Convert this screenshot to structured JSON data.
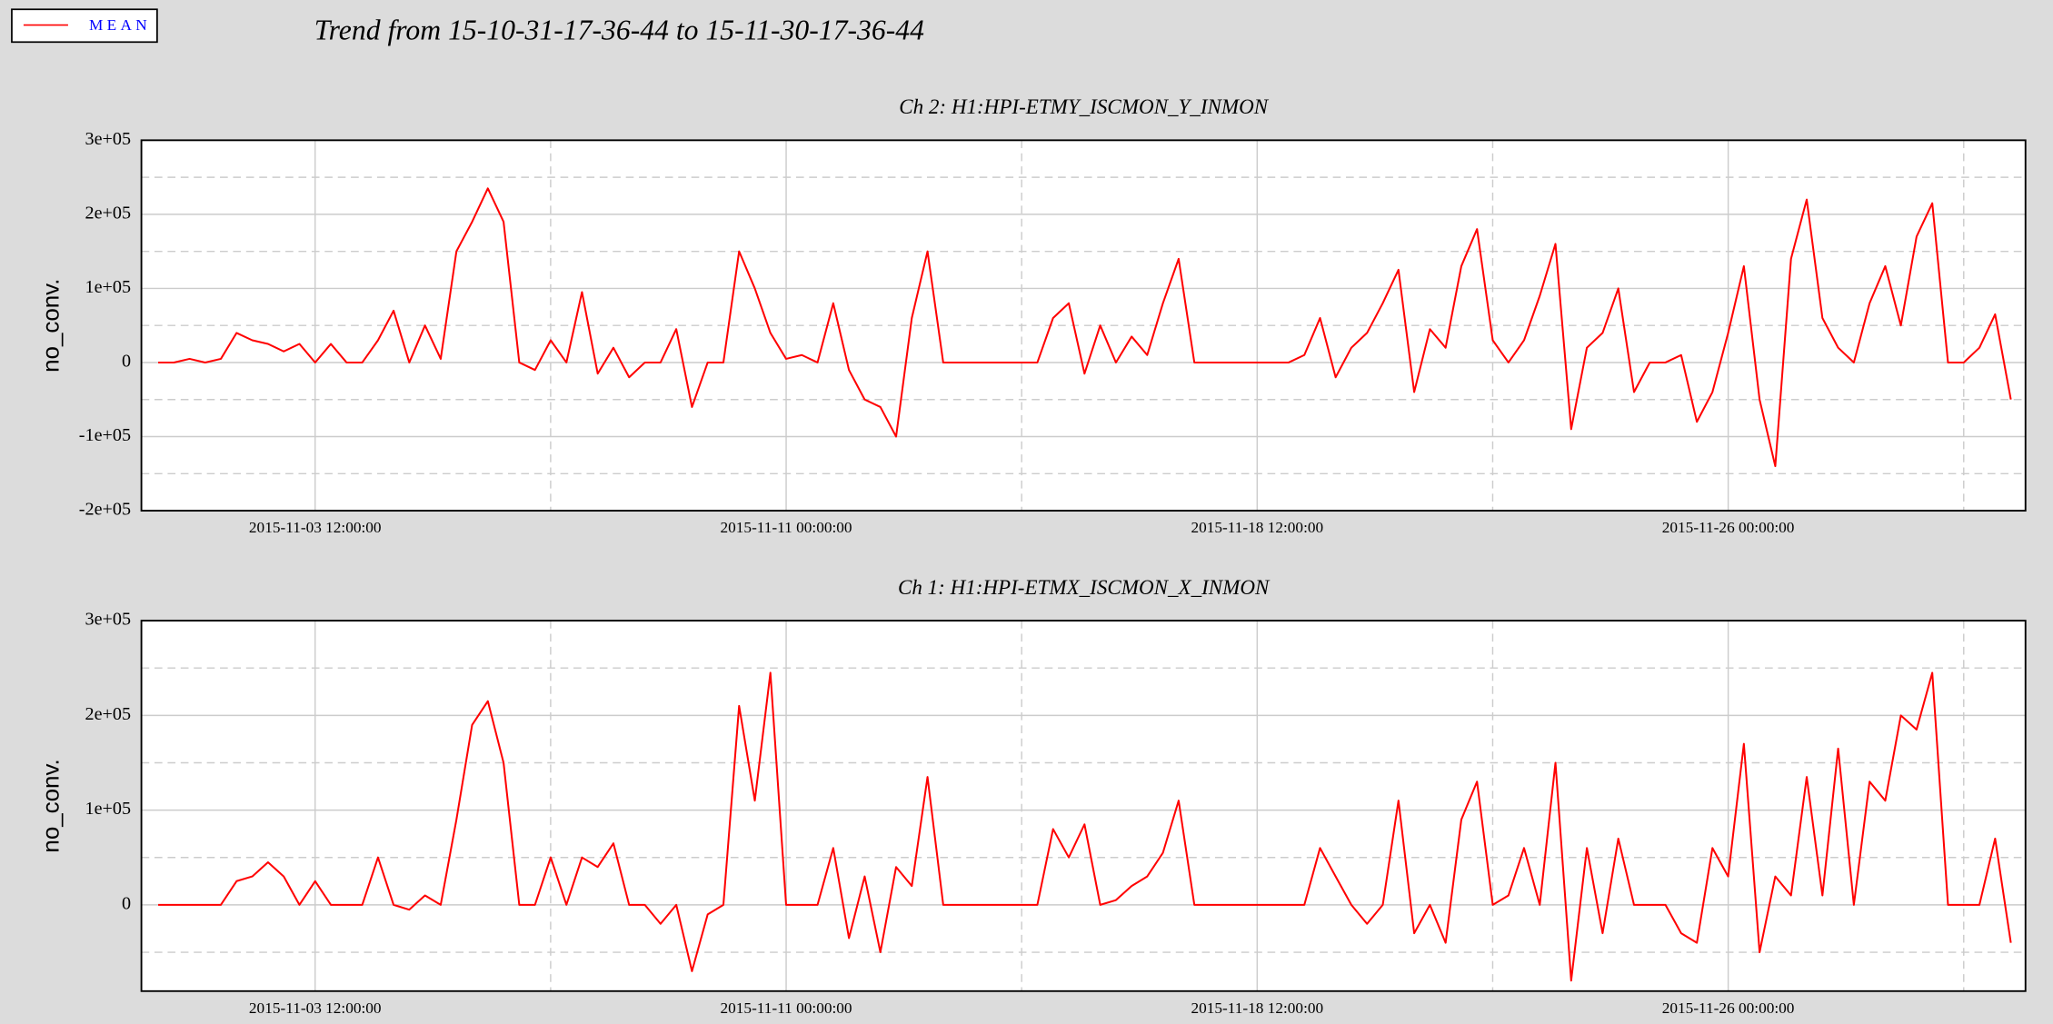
{
  "title": "Trend from 15-10-31-17-36-44 to 15-11-30-17-36-44",
  "chart_data": [
    {
      "type": "line",
      "title": "Ch 2: H1:HPI-ETMY_ISCMON_Y_INMON",
      "ylabel": "no_conv.",
      "xlim": [
        "2015-10-31 17:36:44",
        "2015-11-30 17:36:44"
      ],
      "xticks": [
        "2015-11-03 12:00:00",
        "2015-11-11 00:00:00",
        "2015-11-18 12:00:00",
        "2015-11-26 00:00:00"
      ],
      "xminorticks": [
        "2015-11-07 06:00:00",
        "2015-11-14 18:00:00",
        "2015-11-22 06:00:00",
        "2015-11-29 18:00:00"
      ],
      "ylim": [
        -200000,
        300000
      ],
      "yticks": [
        {
          "value": -200000,
          "label": "-2e+05"
        },
        {
          "value": -100000,
          "label": "-1e+05"
        },
        0,
        {
          "value": 100000,
          "label": "1e+05"
        },
        {
          "value": 200000,
          "label": "2e+05"
        },
        {
          "value": 300000,
          "label": "3e+05"
        }
      ],
      "yminorticks": [
        -150000,
        -50000,
        50000,
        150000,
        250000
      ],
      "grid": true,
      "x": [
        "2015-11-01 00:00:00",
        "2015-11-01 06:00:00",
        "2015-11-01 12:00:00",
        "2015-11-01 18:00:00",
        "2015-11-02 00:00:00",
        "2015-11-02 06:00:00",
        "2015-11-02 12:00:00",
        "2015-11-02 18:00:00",
        "2015-11-03 00:00:00",
        "2015-11-03 06:00:00",
        "2015-11-03 12:00:00",
        "2015-11-03 18:00:00",
        "2015-11-04 00:00:00",
        "2015-11-04 06:00:00",
        "2015-11-04 12:00:00",
        "2015-11-04 18:00:00",
        "2015-11-05 00:00:00",
        "2015-11-05 06:00:00",
        "2015-11-05 12:00:00",
        "2015-11-05 18:00:00",
        "2015-11-06 00:00:00",
        "2015-11-06 06:00:00",
        "2015-11-06 12:00:00",
        "2015-11-06 18:00:00",
        "2015-11-07 00:00:00",
        "2015-11-07 06:00:00",
        "2015-11-07 12:00:00",
        "2015-11-07 18:00:00",
        "2015-11-08 00:00:00",
        "2015-11-08 06:00:00",
        "2015-11-08 12:00:00",
        "2015-11-08 18:00:00",
        "2015-11-09 00:00:00",
        "2015-11-09 06:00:00",
        "2015-11-09 12:00:00",
        "2015-11-09 18:00:00",
        "2015-11-10 00:00:00",
        "2015-11-10 06:00:00",
        "2015-11-10 12:00:00",
        "2015-11-10 18:00:00",
        "2015-11-11 00:00:00",
        "2015-11-11 06:00:00",
        "2015-11-11 12:00:00",
        "2015-11-11 18:00:00",
        "2015-11-12 00:00:00",
        "2015-11-12 06:00:00",
        "2015-11-12 12:00:00",
        "2015-11-12 18:00:00",
        "2015-11-13 00:00:00",
        "2015-11-13 06:00:00",
        "2015-11-13 12:00:00",
        "2015-11-13 18:00:00",
        "2015-11-14 00:00:00",
        "2015-11-14 06:00:00",
        "2015-11-14 12:00:00",
        "2015-11-14 18:00:00",
        "2015-11-15 00:00:00",
        "2015-11-15 06:00:00",
        "2015-11-15 12:00:00",
        "2015-11-15 18:00:00",
        "2015-11-16 00:00:00",
        "2015-11-16 06:00:00",
        "2015-11-16 12:00:00",
        "2015-11-16 18:00:00",
        "2015-11-17 00:00:00",
        "2015-11-17 06:00:00",
        "2015-11-17 12:00:00",
        "2015-11-17 18:00:00",
        "2015-11-18 00:00:00",
        "2015-11-18 06:00:00",
        "2015-11-18 12:00:00",
        "2015-11-18 18:00:00",
        "2015-11-19 00:00:00",
        "2015-11-19 06:00:00",
        "2015-11-19 12:00:00",
        "2015-11-19 18:00:00",
        "2015-11-20 00:00:00",
        "2015-11-20 06:00:00",
        "2015-11-20 12:00:00",
        "2015-11-20 18:00:00",
        "2015-11-21 00:00:00",
        "2015-11-21 06:00:00",
        "2015-11-21 12:00:00",
        "2015-11-21 18:00:00",
        "2015-11-22 00:00:00",
        "2015-11-22 06:00:00",
        "2015-11-22 12:00:00",
        "2015-11-22 18:00:00",
        "2015-11-23 00:00:00",
        "2015-11-23 06:00:00",
        "2015-11-23 12:00:00",
        "2015-11-23 18:00:00",
        "2015-11-24 00:00:00",
        "2015-11-24 06:00:00",
        "2015-11-24 12:00:00",
        "2015-11-24 18:00:00",
        "2015-11-25 00:00:00",
        "2015-11-25 06:00:00",
        "2015-11-25 12:00:00",
        "2015-11-25 18:00:00",
        "2015-11-26 00:00:00",
        "2015-11-26 06:00:00",
        "2015-11-26 12:00:00",
        "2015-11-26 18:00:00",
        "2015-11-27 00:00:00",
        "2015-11-27 06:00:00",
        "2015-11-27 12:00:00",
        "2015-11-27 18:00:00",
        "2015-11-28 00:00:00",
        "2015-11-28 06:00:00",
        "2015-11-28 12:00:00",
        "2015-11-28 18:00:00",
        "2015-11-29 00:00:00",
        "2015-11-29 06:00:00",
        "2015-11-29 12:00:00",
        "2015-11-29 18:00:00",
        "2015-11-30 00:00:00",
        "2015-11-30 06:00:00",
        "2015-11-30 12:00:00"
      ],
      "series": [
        {
          "name": "MEAN",
          "color": "#ff0000",
          "values": [
            0,
            0,
            5000,
            0,
            5000,
            40000,
            30000,
            25000,
            15000,
            25000,
            0,
            25000,
            0,
            0,
            30000,
            70000,
            0,
            50000,
            5000,
            150000,
            190000,
            235000,
            190000,
            0,
            -10000,
            30000,
            0,
            95000,
            -15000,
            20000,
            -20000,
            0,
            0,
            45000,
            -60000,
            0,
            0,
            150000,
            100000,
            40000,
            5000,
            10000,
            0,
            80000,
            -10000,
            -50000,
            -60000,
            -100000,
            60000,
            150000,
            0,
            0,
            0,
            0,
            0,
            0,
            0,
            60000,
            80000,
            -15000,
            50000,
            0,
            35000,
            10000,
            80000,
            140000,
            0,
            0,
            0,
            0,
            0,
            0,
            0,
            10000,
            60000,
            -20000,
            20000,
            40000,
            80000,
            125000,
            -40000,
            45000,
            20000,
            130000,
            180000,
            30000,
            0,
            30000,
            90000,
            160000,
            -90000,
            20000,
            40000,
            100000,
            -40000,
            0,
            0,
            10000,
            -80000,
            -40000,
            40000,
            130000,
            -50000,
            -140000,
            140000,
            220000,
            60000,
            20000,
            0,
            80000,
            130000,
            50000,
            170000,
            215000,
            0,
            0,
            20000,
            65000,
            -50000
          ]
        }
      ]
    },
    {
      "type": "line",
      "title": "Ch 1: H1:HPI-ETMX_ISCMON_X_INMON",
      "ylabel": "no_conv.",
      "xlim": [
        "2015-10-31 17:36:44",
        "2015-11-30 17:36:44"
      ],
      "xticks": [
        "2015-11-03 12:00:00",
        "2015-11-11 00:00:00",
        "2015-11-18 12:00:00",
        "2015-11-26 00:00:00"
      ],
      "xminorticks": [
        "2015-11-07 06:00:00",
        "2015-11-14 18:00:00",
        "2015-11-22 06:00:00",
        "2015-11-29 18:00:00"
      ],
      "ylim": [
        -91000,
        300000
      ],
      "yticks": [
        0,
        {
          "value": 100000,
          "label": "1e+05"
        },
        {
          "value": 200000,
          "label": "2e+05"
        },
        {
          "value": 300000,
          "label": "3e+05"
        }
      ],
      "yminorticks": [
        -50000,
        50000,
        150000,
        250000
      ],
      "grid": true,
      "x": [
        "2015-11-01 00:00:00",
        "2015-11-01 06:00:00",
        "2015-11-01 12:00:00",
        "2015-11-01 18:00:00",
        "2015-11-02 00:00:00",
        "2015-11-02 06:00:00",
        "2015-11-02 12:00:00",
        "2015-11-02 18:00:00",
        "2015-11-03 00:00:00",
        "2015-11-03 06:00:00",
        "2015-11-03 12:00:00",
        "2015-11-03 18:00:00",
        "2015-11-04 00:00:00",
        "2015-11-04 06:00:00",
        "2015-11-04 12:00:00",
        "2015-11-04 18:00:00",
        "2015-11-05 00:00:00",
        "2015-11-05 06:00:00",
        "2015-11-05 12:00:00",
        "2015-11-05 18:00:00",
        "2015-11-06 00:00:00",
        "2015-11-06 06:00:00",
        "2015-11-06 12:00:00",
        "2015-11-06 18:00:00",
        "2015-11-07 00:00:00",
        "2015-11-07 06:00:00",
        "2015-11-07 12:00:00",
        "2015-11-07 18:00:00",
        "2015-11-08 00:00:00",
        "2015-11-08 06:00:00",
        "2015-11-08 12:00:00",
        "2015-11-08 18:00:00",
        "2015-11-09 00:00:00",
        "2015-11-09 06:00:00",
        "2015-11-09 12:00:00",
        "2015-11-09 18:00:00",
        "2015-11-10 00:00:00",
        "2015-11-10 06:00:00",
        "2015-11-10 12:00:00",
        "2015-11-10 18:00:00",
        "2015-11-11 00:00:00",
        "2015-11-11 06:00:00",
        "2015-11-11 12:00:00",
        "2015-11-11 18:00:00",
        "2015-11-12 00:00:00",
        "2015-11-12 06:00:00",
        "2015-11-12 12:00:00",
        "2015-11-12 18:00:00",
        "2015-11-13 00:00:00",
        "2015-11-13 06:00:00",
        "2015-11-13 12:00:00",
        "2015-11-13 18:00:00",
        "2015-11-14 00:00:00",
        "2015-11-14 06:00:00",
        "2015-11-14 12:00:00",
        "2015-11-14 18:00:00",
        "2015-11-15 00:00:00",
        "2015-11-15 06:00:00",
        "2015-11-15 12:00:00",
        "2015-11-15 18:00:00",
        "2015-11-16 00:00:00",
        "2015-11-16 06:00:00",
        "2015-11-16 12:00:00",
        "2015-11-16 18:00:00",
        "2015-11-17 00:00:00",
        "2015-11-17 06:00:00",
        "2015-11-17 12:00:00",
        "2015-11-17 18:00:00",
        "2015-11-18 00:00:00",
        "2015-11-18 06:00:00",
        "2015-11-18 12:00:00",
        "2015-11-18 18:00:00",
        "2015-11-19 00:00:00",
        "2015-11-19 06:00:00",
        "2015-11-19 12:00:00",
        "2015-11-19 18:00:00",
        "2015-11-20 00:00:00",
        "2015-11-20 06:00:00",
        "2015-11-20 12:00:00",
        "2015-11-20 18:00:00",
        "2015-11-21 00:00:00",
        "2015-11-21 06:00:00",
        "2015-11-21 12:00:00",
        "2015-11-21 18:00:00",
        "2015-11-22 00:00:00",
        "2015-11-22 06:00:00",
        "2015-11-22 12:00:00",
        "2015-11-22 18:00:00",
        "2015-11-23 00:00:00",
        "2015-11-23 06:00:00",
        "2015-11-23 12:00:00",
        "2015-11-23 18:00:00",
        "2015-11-24 00:00:00",
        "2015-11-24 06:00:00",
        "2015-11-24 12:00:00",
        "2015-11-24 18:00:00",
        "2015-11-25 00:00:00",
        "2015-11-25 06:00:00",
        "2015-11-25 12:00:00",
        "2015-11-25 18:00:00",
        "2015-11-26 00:00:00",
        "2015-11-26 06:00:00",
        "2015-11-26 12:00:00",
        "2015-11-26 18:00:00",
        "2015-11-27 00:00:00",
        "2015-11-27 06:00:00",
        "2015-11-27 12:00:00",
        "2015-11-27 18:00:00",
        "2015-11-28 00:00:00",
        "2015-11-28 06:00:00",
        "2015-11-28 12:00:00",
        "2015-11-28 18:00:00",
        "2015-11-29 00:00:00",
        "2015-11-29 06:00:00",
        "2015-11-29 12:00:00",
        "2015-11-29 18:00:00",
        "2015-11-30 00:00:00",
        "2015-11-30 06:00:00",
        "2015-11-30 12:00:00"
      ],
      "series": [
        {
          "name": "MEAN",
          "color": "#ff0000",
          "values": [
            0,
            0,
            0,
            0,
            0,
            25000,
            30000,
            45000,
            30000,
            0,
            25000,
            0,
            0,
            0,
            50000,
            0,
            -5000,
            10000,
            0,
            90000,
            190000,
            215000,
            150000,
            0,
            0,
            50000,
            0,
            50000,
            40000,
            65000,
            0,
            0,
            -20000,
            0,
            -70000,
            -10000,
            0,
            210000,
            110000,
            245000,
            0,
            0,
            0,
            60000,
            -35000,
            30000,
            -50000,
            40000,
            20000,
            135000,
            0,
            0,
            0,
            0,
            0,
            0,
            0,
            80000,
            50000,
            85000,
            0,
            5000,
            20000,
            30000,
            55000,
            110000,
            0,
            0,
            0,
            0,
            0,
            0,
            0,
            0,
            60000,
            30000,
            0,
            -20000,
            0,
            110000,
            -30000,
            0,
            -40000,
            90000,
            130000,
            0,
            10000,
            60000,
            0,
            150000,
            -80000,
            60000,
            -30000,
            70000,
            0,
            0,
            0,
            -30000,
            -40000,
            60000,
            30000,
            170000,
            -50000,
            30000,
            10000,
            135000,
            10000,
            165000,
            0,
            130000,
            110000,
            200000,
            185000,
            245000,
            0,
            0,
            0,
            70000,
            -40000
          ]
        }
      ]
    }
  ]
}
